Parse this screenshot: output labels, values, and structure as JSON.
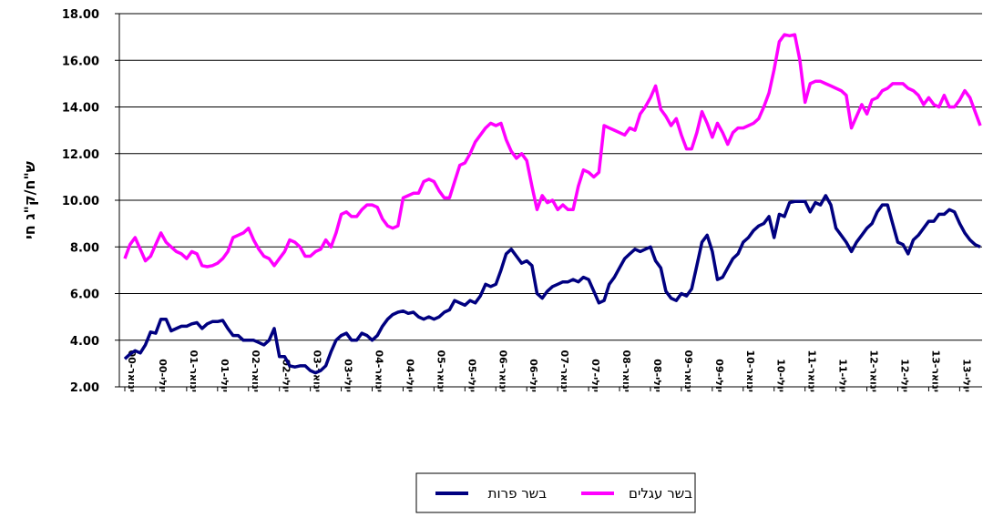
{
  "chart_data": {
    "type": "line",
    "ylabel": "ש\"ח/ק\"ג חי",
    "categories": [
      "ינואר-00",
      null,
      null,
      null,
      null,
      null,
      "יולי-00",
      null,
      null,
      null,
      null,
      null,
      "ינואר-01",
      null,
      null,
      null,
      null,
      null,
      "יולי-01",
      null,
      null,
      null,
      null,
      null,
      "ינואר-02",
      null,
      null,
      null,
      null,
      null,
      "יולי-02",
      null,
      null,
      null,
      null,
      null,
      "ינואר-03",
      null,
      null,
      null,
      null,
      null,
      "יולי-03",
      null,
      null,
      null,
      null,
      null,
      "ינואר-04",
      null,
      null,
      null,
      null,
      null,
      "יולי-04",
      null,
      null,
      null,
      null,
      null,
      "ינואר-05",
      null,
      null,
      null,
      null,
      null,
      "יולי-05",
      null,
      null,
      null,
      null,
      null,
      "ינואר-06",
      null,
      null,
      null,
      null,
      null,
      "יולי-06",
      null,
      null,
      null,
      null,
      null,
      "ינואר-07",
      null,
      null,
      null,
      null,
      null,
      "יולי-07",
      null,
      null,
      null,
      null,
      null,
      "ינואר-08",
      null,
      null,
      null,
      null,
      null,
      "יולי-08",
      null,
      null,
      null,
      null,
      null,
      "ינואר-09",
      null,
      null,
      null,
      null,
      null,
      "יולי-09",
      null,
      null,
      null,
      null,
      null,
      "ינואר-10",
      null,
      null,
      null,
      null,
      null,
      "יולי-10",
      null,
      null,
      null,
      null,
      null,
      "ינואר-11",
      null,
      null,
      null,
      null,
      null,
      "יולי-11",
      null,
      null,
      null,
      null,
      null,
      "ינואר-12",
      null,
      null,
      null,
      null,
      null,
      "יולי-12",
      null,
      null,
      null,
      null,
      null,
      "ינואר-13",
      null,
      null,
      null,
      null,
      null,
      "יולי-13",
      null,
      null,
      null,
      null
    ],
    "series": [
      {
        "name": "בשר עגלים",
        "color": "#ff00ff",
        "values": [
          7.5,
          8.1,
          8.4,
          7.9,
          7.4,
          7.6,
          8.1,
          8.6,
          8.2,
          8.0,
          7.8,
          7.7,
          7.5,
          7.8,
          7.7,
          7.2,
          7.15,
          7.2,
          7.3,
          7.5,
          7.8,
          8.4,
          8.5,
          8.6,
          8.8,
          8.3,
          7.9,
          7.6,
          7.5,
          7.2,
          7.5,
          7.8,
          8.3,
          8.2,
          8.0,
          7.6,
          7.6,
          7.8,
          7.9,
          8.3,
          8.0,
          8.6,
          9.4,
          9.5,
          9.3,
          9.3,
          9.6,
          9.8,
          9.8,
          9.7,
          9.2,
          8.9,
          8.8,
          8.9,
          10.1,
          10.2,
          10.3,
          10.3,
          10.8,
          10.9,
          10.8,
          10.4,
          10.1,
          10.1,
          10.8,
          11.5,
          11.6,
          12.0,
          12.5,
          12.8,
          13.1,
          13.3,
          13.2,
          13.3,
          12.6,
          12.1,
          11.8,
          12.0,
          11.7,
          10.6,
          9.6,
          10.2,
          9.9,
          10.0,
          9.6,
          9.8,
          9.6,
          9.6,
          10.6,
          11.3,
          11.2,
          11.0,
          11.2,
          13.2,
          13.1,
          13.0,
          12.9,
          12.8,
          13.1,
          13.0,
          13.7,
          14.0,
          14.4,
          14.9,
          13.9,
          13.6,
          13.2,
          13.5,
          12.8,
          12.2,
          12.2,
          12.9,
          13.8,
          13.3,
          12.7,
          13.3,
          12.9,
          12.4,
          12.9,
          13.1,
          13.1,
          13.2,
          13.3,
          13.5,
          14.0,
          14.6,
          15.6,
          16.8,
          17.1,
          17.05,
          17.1,
          16.0,
          14.2,
          15.0,
          15.1,
          15.1,
          15.0,
          14.9,
          14.8,
          14.7,
          14.5,
          13.1,
          13.6,
          14.1,
          13.7,
          14.3,
          14.4,
          14.7,
          14.8,
          15.0,
          15.0,
          15.0,
          14.8,
          14.7,
          14.5,
          14.1,
          14.4,
          14.1,
          14.0,
          14.5,
          14.0,
          14.0,
          14.3,
          14.7,
          14.4,
          13.8,
          13.2
        ]
      },
      {
        "name": "בשר פרות",
        "color": "#000080",
        "values": [
          3.2,
          3.4,
          3.55,
          3.45,
          3.8,
          4.35,
          4.3,
          4.9,
          4.9,
          4.4,
          4.5,
          4.6,
          4.6,
          4.7,
          4.75,
          4.5,
          4.7,
          4.8,
          4.8,
          4.85,
          4.5,
          4.2,
          4.2,
          4.0,
          4.0,
          4.0,
          3.9,
          3.8,
          4.0,
          4.5,
          3.3,
          3.3,
          2.9,
          2.85,
          2.9,
          2.9,
          2.7,
          2.6,
          2.7,
          2.9,
          3.5,
          4.0,
          4.2,
          4.3,
          4.0,
          4.0,
          4.3,
          4.2,
          4.0,
          4.2,
          4.6,
          4.9,
          5.1,
          5.2,
          5.25,
          5.15,
          5.2,
          5.0,
          4.9,
          5.0,
          4.9,
          5.0,
          5.2,
          5.3,
          5.7,
          5.6,
          5.5,
          5.7,
          5.6,
          5.9,
          6.4,
          6.3,
          6.4,
          7.0,
          7.7,
          7.9,
          7.6,
          7.3,
          7.4,
          7.2,
          6.0,
          5.8,
          6.1,
          6.3,
          6.4,
          6.5,
          6.5,
          6.6,
          6.5,
          6.7,
          6.6,
          6.1,
          5.6,
          5.7,
          6.4,
          6.7,
          7.1,
          7.5,
          7.7,
          7.9,
          7.8,
          7.9,
          8.0,
          7.4,
          7.1,
          6.1,
          5.8,
          5.7,
          6.0,
          5.9,
          6.2,
          7.2,
          8.2,
          8.5,
          7.8,
          6.6,
          6.7,
          7.1,
          7.5,
          7.7,
          8.2,
          8.4,
          8.7,
          8.9,
          9.0,
          9.3,
          8.4,
          9.4,
          9.3,
          9.9,
          9.95,
          9.95,
          9.95,
          9.5,
          9.9,
          9.8,
          10.2,
          9.8,
          8.8,
          8.5,
          8.2,
          7.8,
          8.2,
          8.5,
          8.8,
          9.0,
          9.5,
          9.8,
          9.8,
          9.0,
          8.2,
          8.1,
          7.7,
          8.3,
          8.5,
          8.8,
          9.1,
          9.1,
          9.4,
          9.4,
          9.6,
          9.5,
          9.0,
          8.6,
          8.3,
          8.1,
          8.0
        ]
      }
    ],
    "ylim": [
      2,
      18
    ],
    "yticks": [
      {
        "value": 2,
        "label": "2.00"
      },
      {
        "value": 4,
        "label": "4.00"
      },
      {
        "value": 6,
        "label": "6.00"
      },
      {
        "value": 8,
        "label": "8.00"
      },
      {
        "value": 10,
        "label": "10.00"
      },
      {
        "value": 12,
        "label": "12.00"
      },
      {
        "value": 14,
        "label": "14.00"
      },
      {
        "value": 16,
        "label": "16.00"
      },
      {
        "value": 18,
        "label": "18.00"
      }
    ],
    "grid": true
  }
}
